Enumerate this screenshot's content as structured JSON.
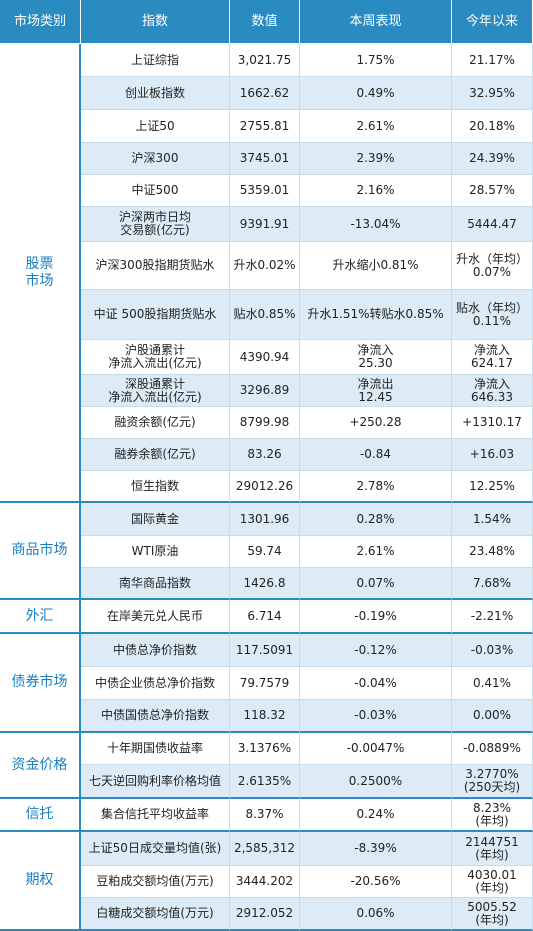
{
  "table": {
    "header": [
      "市场类别",
      "指数",
      "数值",
      "本周表现",
      "今年以来"
    ],
    "groups": [
      {
        "name": "股票\n市场",
        "rows": [
          [
            "上证综指",
            "3,021.75",
            "1.75%",
            "21.17%"
          ],
          [
            "创业板指数",
            "1662.62",
            "0.49%",
            "32.95%"
          ],
          [
            "上证50",
            "2755.81",
            "2.61%",
            "20.18%"
          ],
          [
            "沪深300",
            "3745.01",
            "2.39%",
            "24.39%"
          ],
          [
            "中证500",
            "5359.01",
            "2.16%",
            "28.57%"
          ],
          [
            "沪深两市日均\n交易额(亿元)",
            "9391.91",
            "-13.04%",
            "5444.47"
          ],
          [
            "沪深300股指期货贴水",
            "升水0.02%",
            "升水缩小0.81%",
            "升水（年均）\n0.07%"
          ],
          [
            "中证 500股指期货贴水",
            "贴水0.85%",
            "升水1.51%转贴水0.85%",
            "贴水（年均）\n0.11%"
          ],
          [
            "沪股通累计\n净流入流出(亿元)",
            "4390.94",
            "净流入\n25.30",
            "净流入\n624.17"
          ],
          [
            "深股通累计\n净流入流出(亿元)",
            "3296.89",
            "净流出\n12.45",
            "净流入\n646.33"
          ],
          [
            "融资余额(亿元)",
            "8799.98",
            "+250.28",
            "+1310.17"
          ],
          [
            "融券余额(亿元)",
            "83.26",
            "-0.84",
            "+16.03"
          ],
          [
            "恒生指数",
            "29012.26",
            "2.78%",
            "12.25%"
          ]
        ]
      },
      {
        "name": "商品市场",
        "rows": [
          [
            "国际黄金",
            "1301.96",
            "0.28%",
            "1.54%"
          ],
          [
            "WTI原油",
            "59.74",
            "2.61%",
            "23.48%"
          ],
          [
            "南华商品指数",
            "1426.8",
            "0.07%",
            "7.68%"
          ]
        ]
      },
      {
        "name": "外汇",
        "rows": [
          [
            "在岸美元兑人民币",
            "6.714",
            "-0.19%",
            "-2.21%"
          ]
        ]
      },
      {
        "name": "债券市场",
        "rows": [
          [
            "中债总净价指数",
            "117.5091",
            "-0.12%",
            "-0.03%"
          ],
          [
            "中债企业债总净价指数",
            "79.7579",
            "-0.04%",
            "0.41%"
          ],
          [
            "中债国债总净价指数",
            "118.32",
            "-0.03%",
            "0.00%"
          ]
        ]
      },
      {
        "name": "资金价格",
        "rows": [
          [
            "十年期国债收益率",
            "3.1376%",
            "-0.0047%",
            "-0.0889%"
          ],
          [
            "七天逆回购利率价格均值",
            "2.6135%",
            "0.2500%",
            "3.2770%\n(250天均)"
          ]
        ]
      },
      {
        "name": "信托",
        "rows": [
          [
            "集合信托平均收益率",
            "8.37%",
            "0.24%",
            "8.23%\n(年均)"
          ]
        ]
      },
      {
        "name": "期权",
        "rows": [
          [
            "上证50日成交量均值(张)",
            "2,585,312",
            "-8.39%",
            "2144751\n(年均)"
          ],
          [
            "豆粕成交额均值(万元)",
            "3444.202",
            "-20.56%",
            "4030.01\n(年均)"
          ],
          [
            "白糖成交额均值(万元)",
            "2912.052",
            "0.06%",
            "5005.52\n(年均)"
          ]
        ]
      }
    ]
  }
}
